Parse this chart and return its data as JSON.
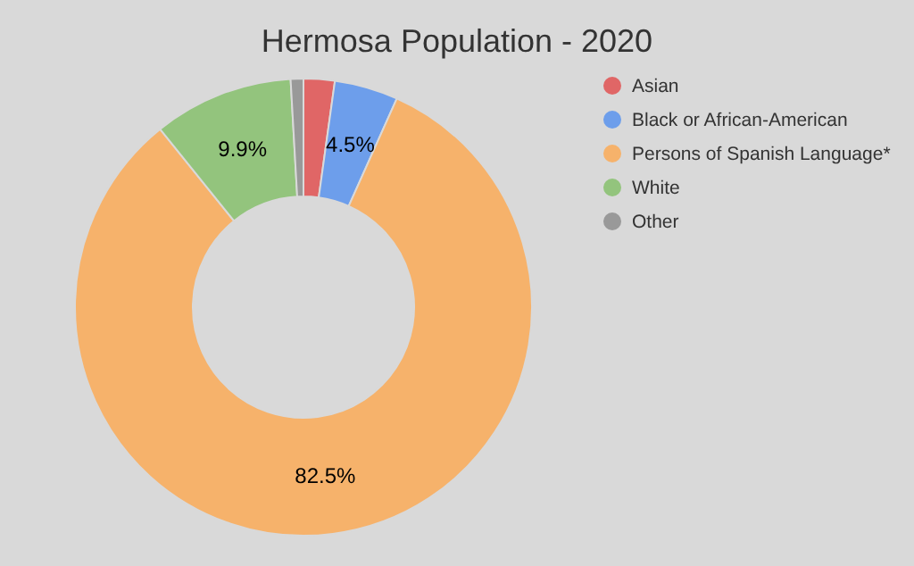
{
  "chart_data": {
    "type": "donut",
    "title": "Hermosa Population - 2020",
    "categories": [
      "Asian",
      "Black or African-American",
      "Persons of Spanish Language*",
      "White",
      "Other"
    ],
    "values": [
      2.2,
      4.5,
      82.5,
      9.9,
      0.9
    ],
    "colors": [
      "#e06666",
      "#6d9eeb",
      "#f6b26b",
      "#93c47d",
      "#999999"
    ],
    "value_labels": [
      null,
      "4.5%",
      "82.5%",
      "9.9%",
      null
    ],
    "legend": "right"
  }
}
